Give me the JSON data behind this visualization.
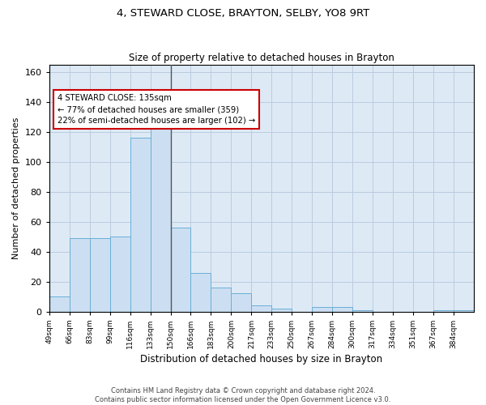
{
  "title1": "4, STEWARD CLOSE, BRAYTON, SELBY, YO8 9RT",
  "title2": "Size of property relative to detached houses in Brayton",
  "xlabel": "Distribution of detached houses by size in Brayton",
  "ylabel": "Number of detached properties",
  "footnote1": "Contains HM Land Registry data © Crown copyright and database right 2024.",
  "footnote2": "Contains public sector information licensed under the Open Government Licence v3.0.",
  "bin_labels": [
    "49sqm",
    "66sqm",
    "83sqm",
    "99sqm",
    "116sqm",
    "133sqm",
    "150sqm",
    "166sqm",
    "183sqm",
    "200sqm",
    "217sqm",
    "233sqm",
    "250sqm",
    "267sqm",
    "284sqm",
    "300sqm",
    "317sqm",
    "334sqm",
    "351sqm",
    "367sqm",
    "384sqm"
  ],
  "bar_heights": [
    10,
    49,
    49,
    50,
    116,
    125,
    56,
    26,
    16,
    12,
    4,
    2,
    0,
    3,
    3,
    1,
    0,
    0,
    0,
    1,
    1
  ],
  "bar_color": "#ccdff2",
  "bar_edge_color": "#6aaed6",
  "property_bin_index": 5,
  "property_label": "4 STEWARD CLOSE: 135sqm",
  "annotation_line1": "← 77% of detached houses are smaller (359)",
  "annotation_line2": "22% of semi-detached houses are larger (102) →",
  "annotation_box_color": "#ffffff",
  "annotation_box_edge": "#cc0000",
  "vline_color": "#555555",
  "ylim": [
    0,
    165
  ],
  "yticks": [
    0,
    20,
    40,
    60,
    80,
    100,
    120,
    140,
    160
  ],
  "grid_color": "#bbccdd",
  "background_color": "#ddeaf6"
}
